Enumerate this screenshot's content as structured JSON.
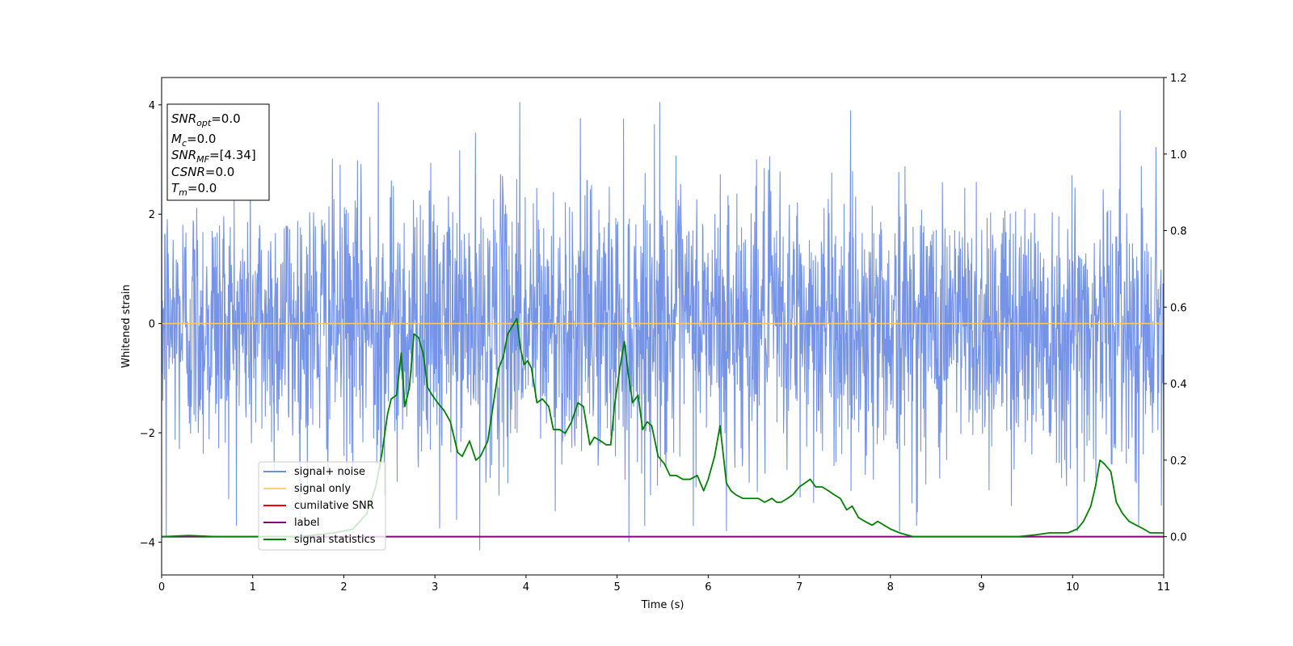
{
  "chart_data": {
    "type": "line",
    "xlabel": "Time (s)",
    "ylabel": "Whitened strain",
    "xlim": [
      0,
      11
    ],
    "ylim_left": [
      -4.6,
      4.5
    ],
    "ylim_right": [
      -0.1,
      1.2
    ],
    "x_ticks": [
      "0",
      "1",
      "2",
      "3",
      "4",
      "5",
      "6",
      "7",
      "8",
      "9",
      "10",
      "11"
    ],
    "y_ticks_left": [
      "−4",
      "−2",
      "0",
      "2",
      "4"
    ],
    "y_ticks_right": [
      "0.0",
      "0.2",
      "0.4",
      "0.6",
      "0.8",
      "1.0",
      "1.2"
    ],
    "annotation": {
      "snr_opt": {
        "sym": "SNR",
        "sub": "opt",
        "value": "=0.0"
      },
      "mc": {
        "sym": "M",
        "sub": "c",
        "value": "=0.0"
      },
      "snr_mf": {
        "sym": "SNR",
        "sub": "MF",
        "value": "=[4.34]"
      },
      "csnr": {
        "sym": "CSNR",
        "value": "=0.0"
      },
      "tm": {
        "sym": "T",
        "sub": "m",
        "value": "=0.0"
      }
    },
    "legend_position": "lower-left",
    "legend": [
      {
        "label": "signal+ noise",
        "color": "#6f8ee6"
      },
      {
        "label": "signal only",
        "color": "#ffd27a"
      },
      {
        "label": "cumilative SNR",
        "color": "#ff0000"
      },
      {
        "label": "label",
        "color": "#800080"
      },
      {
        "label": "signal statistics",
        "color": "#008000"
      }
    ],
    "series": [
      {
        "name": "signal+ noise",
        "axis": "left",
        "color": "#6f8ee6",
        "description_band": [
          -1.5,
          1.6
        ],
        "extreme_peaks": [
          [
            2.38,
            4.05
          ],
          [
            3.93,
            4.05
          ],
          [
            5.47,
            4.05
          ],
          [
            3.49,
            -4.15
          ],
          [
            5.13,
            -4.0
          ],
          [
            0.05,
            -3.9
          ],
          [
            6.2,
            -3.8
          ],
          [
            8.1,
            -3.8
          ],
          [
            3.05,
            -3.75
          ],
          [
            10.05,
            -3.8
          ]
        ]
      },
      {
        "name": "signal only",
        "axis": "left",
        "color": "#ffc864",
        "x": [
          0,
          11
        ],
        "y": [
          0,
          0
        ]
      },
      {
        "name": "label",
        "axis": "right",
        "color": "#800080",
        "x": [
          0,
          11
        ],
        "y": [
          0,
          0
        ]
      },
      {
        "name": "signal statistics",
        "axis": "right",
        "color": "#008000",
        "x": [
          0,
          0.3,
          0.6,
          1.0,
          1.5,
          1.9,
          2.1,
          2.25,
          2.35,
          2.42,
          2.48,
          2.52,
          2.58,
          2.63,
          2.67,
          2.72,
          2.77,
          2.82,
          2.87,
          2.92,
          2.97,
          3.03,
          3.1,
          3.17,
          3.25,
          3.3,
          3.38,
          3.45,
          3.5,
          3.58,
          3.65,
          3.7,
          3.75,
          3.8,
          3.85,
          3.9,
          3.94,
          3.98,
          4.02,
          4.06,
          4.12,
          4.18,
          4.25,
          4.3,
          4.37,
          4.43,
          4.5,
          4.57,
          4.63,
          4.7,
          4.75,
          4.82,
          4.88,
          4.93,
          4.97,
          5.03,
          5.08,
          5.12,
          5.17,
          5.23,
          5.28,
          5.33,
          5.38,
          5.45,
          5.52,
          5.58,
          5.65,
          5.72,
          5.8,
          5.88,
          5.95,
          6.0,
          6.07,
          6.13,
          6.2,
          6.25,
          6.3,
          6.38,
          6.47,
          6.55,
          6.62,
          6.7,
          6.75,
          6.8,
          6.87,
          6.93,
          7.0,
          7.06,
          7.12,
          7.18,
          7.25,
          7.32,
          7.38,
          7.45,
          7.52,
          7.58,
          7.65,
          7.72,
          7.8,
          7.86,
          7.93,
          8.0,
          8.1,
          8.25,
          8.5,
          9.0,
          9.4,
          9.6,
          9.75,
          9.85,
          9.95,
          10.05,
          10.12,
          10.2,
          10.25,
          10.3,
          10.35,
          10.42,
          10.48,
          10.55,
          10.62,
          10.7,
          10.78,
          10.85,
          10.92,
          11.0
        ],
        "y": [
          0.0,
          0.003,
          0.0,
          0.0,
          0.0,
          0.01,
          0.02,
          0.06,
          0.13,
          0.22,
          0.32,
          0.36,
          0.37,
          0.48,
          0.34,
          0.39,
          0.53,
          0.52,
          0.48,
          0.39,
          0.37,
          0.35,
          0.33,
          0.3,
          0.22,
          0.21,
          0.25,
          0.2,
          0.21,
          0.25,
          0.36,
          0.44,
          0.47,
          0.53,
          0.55,
          0.57,
          0.49,
          0.45,
          0.46,
          0.44,
          0.35,
          0.36,
          0.34,
          0.28,
          0.28,
          0.27,
          0.3,
          0.35,
          0.34,
          0.24,
          0.26,
          0.25,
          0.24,
          0.24,
          0.34,
          0.44,
          0.51,
          0.43,
          0.35,
          0.37,
          0.28,
          0.3,
          0.29,
          0.21,
          0.19,
          0.16,
          0.16,
          0.15,
          0.15,
          0.16,
          0.12,
          0.15,
          0.21,
          0.29,
          0.14,
          0.12,
          0.11,
          0.1,
          0.1,
          0.1,
          0.09,
          0.1,
          0.09,
          0.09,
          0.1,
          0.11,
          0.13,
          0.14,
          0.15,
          0.13,
          0.13,
          0.12,
          0.11,
          0.1,
          0.07,
          0.08,
          0.05,
          0.04,
          0.03,
          0.04,
          0.03,
          0.02,
          0.01,
          0.0,
          0.0,
          0.0,
          0.0,
          0.005,
          0.01,
          0.01,
          0.01,
          0.02,
          0.04,
          0.08,
          0.13,
          0.2,
          0.19,
          0.17,
          0.09,
          0.06,
          0.04,
          0.03,
          0.02,
          0.01,
          0.01,
          0.01
        ]
      }
    ]
  }
}
